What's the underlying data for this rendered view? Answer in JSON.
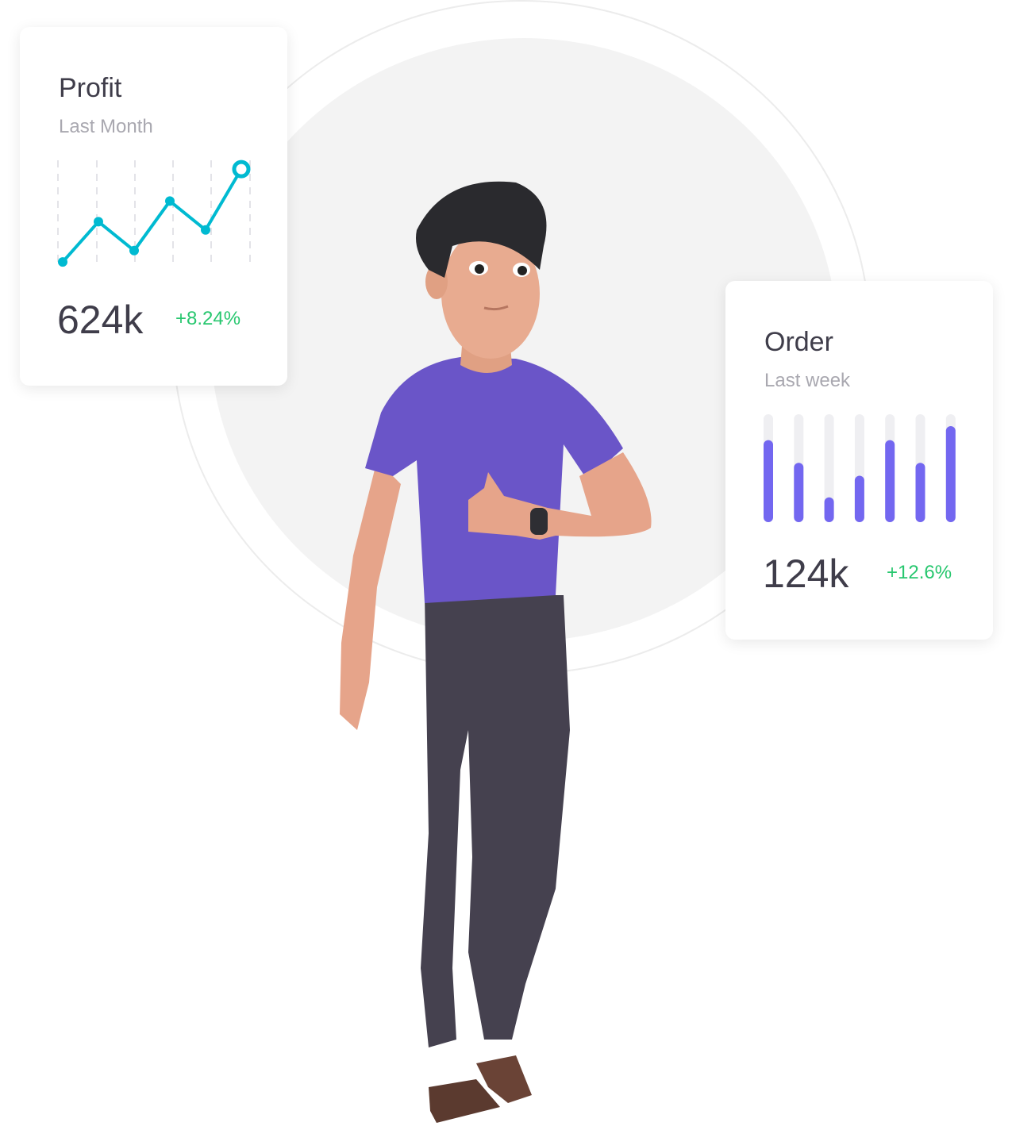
{
  "profit_card": {
    "title": "Profit",
    "subtitle": "Last Month",
    "value": "624k",
    "change": "+8.24%",
    "chart_data": {
      "type": "line",
      "values": [
        3,
        42,
        14,
        62,
        34,
        93
      ],
      "grid": "dashed vertical",
      "color": "#00bad1"
    }
  },
  "order_card": {
    "title": "Order",
    "subtitle": "Last week",
    "value": "124k",
    "change": "+12.6%",
    "chart_data": {
      "type": "bar",
      "values": [
        0.76,
        0.55,
        0.23,
        0.43,
        0.76,
        0.55,
        0.89
      ],
      "color": "#7367f0",
      "track_color": "#efeff2"
    }
  },
  "colors": {
    "positive": "#28c76f",
    "text": "#3f3d4a",
    "muted": "#a9a8b0"
  },
  "illustration": "3d-character-thumbs-up"
}
